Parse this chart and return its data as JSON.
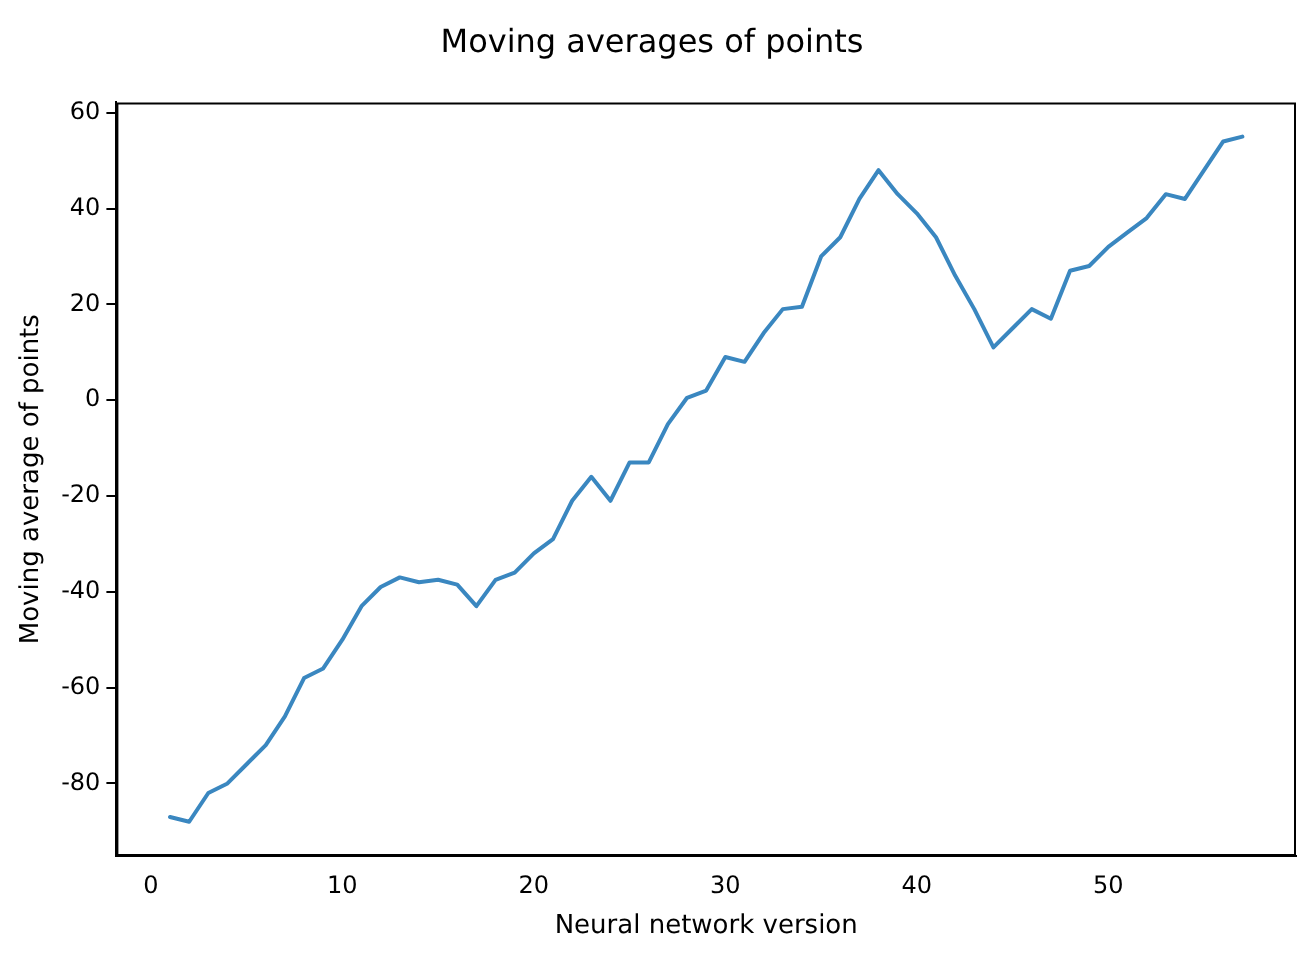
{
  "chart_data": {
    "type": "line",
    "title": "Moving averages of points",
    "xlabel": "Neural network version",
    "ylabel": "Moving average of points",
    "x": [
      1,
      2,
      3,
      4,
      5,
      6,
      7,
      8,
      9,
      10,
      11,
      12,
      13,
      14,
      15,
      16,
      17,
      18,
      19,
      20,
      21,
      22,
      23,
      24,
      25,
      26,
      27,
      28,
      29,
      30,
      31,
      32,
      33,
      34,
      35,
      36,
      37,
      38,
      39,
      40,
      41,
      42,
      43,
      44,
      45,
      46,
      47,
      48,
      49,
      50,
      51,
      52,
      53,
      54,
      55,
      56,
      57
    ],
    "series": [
      {
        "color": "#3a87c0",
        "values": [
          -87,
          -88,
          -82,
          -80,
          -76,
          -72,
          -66,
          -58,
          -56,
          -50,
          -43,
          -39,
          -37,
          -38,
          -37.5,
          -38.5,
          -43,
          -37.5,
          -36,
          -32,
          -29,
          -21,
          -16,
          -21,
          -13,
          -13,
          -5,
          0.5,
          2,
          9,
          8,
          14,
          19,
          19.5,
          30,
          34,
          42,
          48,
          43,
          39,
          34,
          26,
          19,
          11,
          15,
          19,
          17,
          27,
          28,
          32,
          35,
          38,
          43,
          42,
          48,
          54,
          55
        ]
      }
    ],
    "xlim": [
      -1.8,
      59.8
    ],
    "xticks": [
      0,
      10,
      20,
      30,
      40,
      50
    ],
    "ylim": [
      -95.15,
      62.15
    ],
    "yticks": [
      -80,
      -60,
      -40,
      -20,
      0,
      20,
      40,
      60
    ],
    "grid": false,
    "legend": false,
    "marker": "none",
    "line_style": "solid"
  }
}
